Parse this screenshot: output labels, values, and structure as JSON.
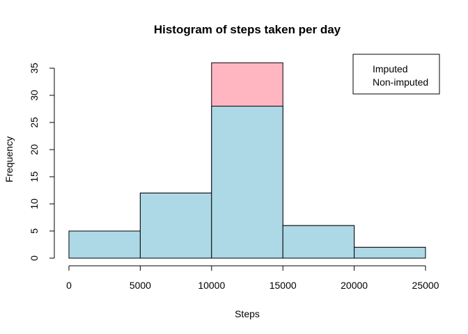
{
  "chart_data": {
    "type": "bar",
    "title": "Histogram of steps taken per day",
    "xlabel": "Steps",
    "ylabel": "Frequency",
    "bins": [
      {
        "from": 0,
        "to": 5000
      },
      {
        "from": 5000,
        "to": 10000
      },
      {
        "from": 10000,
        "to": 15000
      },
      {
        "from": 15000,
        "to": 20000
      },
      {
        "from": 20000,
        "to": 25000
      }
    ],
    "series": [
      {
        "name": "Imputed",
        "values": [
          5,
          12,
          36,
          6,
          2
        ],
        "color": "#ffb6c1"
      },
      {
        "name": "Non-imputed",
        "values": [
          5,
          12,
          28,
          6,
          2
        ],
        "color": "#add8e6"
      }
    ],
    "xlim": [
      0,
      25000
    ],
    "ylim": [
      0,
      35
    ],
    "xticks": [
      0,
      5000,
      10000,
      15000,
      20000,
      25000
    ],
    "yticks": [
      0,
      5,
      10,
      15,
      20,
      25,
      30,
      35
    ],
    "grid": false,
    "legend": {
      "position": "top-right",
      "entries": [
        "Imputed",
        "Non-imputed"
      ]
    }
  }
}
